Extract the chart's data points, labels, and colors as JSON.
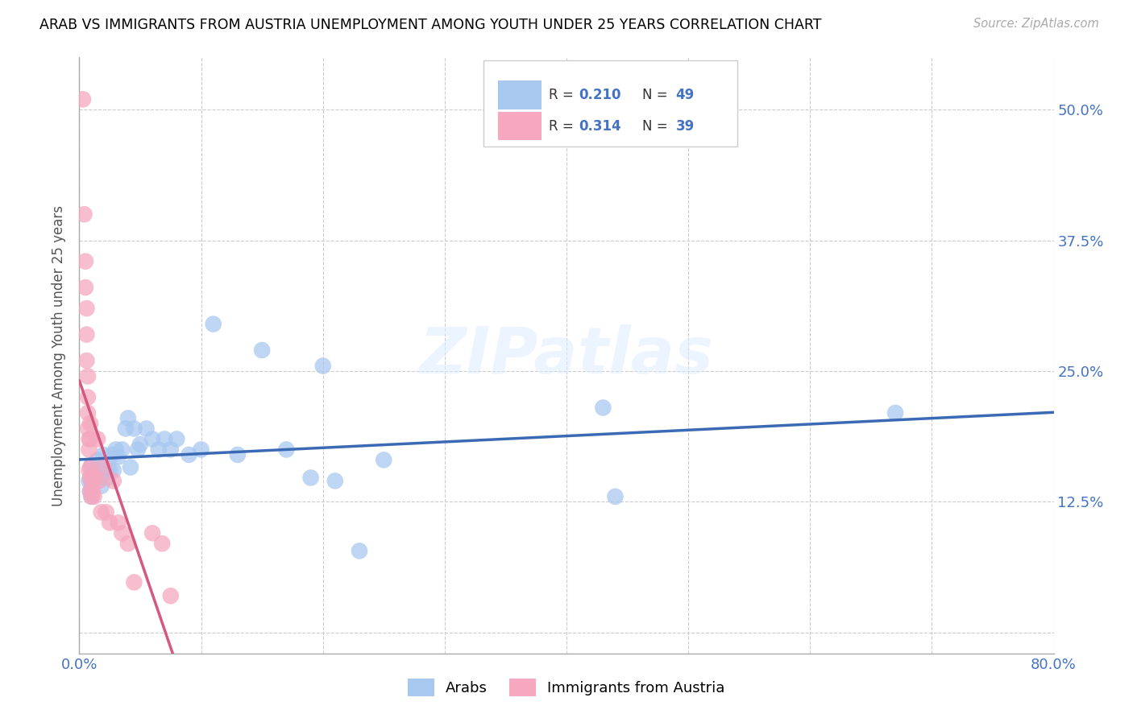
{
  "title": "ARAB VS IMMIGRANTS FROM AUSTRIA UNEMPLOYMENT AMONG YOUTH UNDER 25 YEARS CORRELATION CHART",
  "source": "Source: ZipAtlas.com",
  "ylabel": "Unemployment Among Youth under 25 years",
  "xlim": [
    0.0,
    0.8
  ],
  "ylim": [
    -0.02,
    0.55
  ],
  "x_ticks": [
    0.0,
    0.1,
    0.2,
    0.3,
    0.4,
    0.5,
    0.6,
    0.7,
    0.8
  ],
  "y_ticks": [
    0.0,
    0.125,
    0.25,
    0.375,
    0.5
  ],
  "arab_color": "#a8c8f0",
  "austria_color": "#f5a8c0",
  "arab_line_color": "#3b6ab5",
  "austria_line_color": "#d45880",
  "watermark": "ZIPatlas",
  "arab_R": 0.21,
  "arab_N": 49,
  "austria_R": 0.314,
  "austria_N": 39,
  "arab_x": [
    0.008,
    0.009,
    0.01,
    0.01,
    0.01,
    0.01,
    0.01,
    0.012,
    0.013,
    0.015,
    0.016,
    0.017,
    0.018,
    0.02,
    0.021,
    0.022,
    0.023,
    0.025,
    0.027,
    0.028,
    0.03,
    0.032,
    0.035,
    0.038,
    0.04,
    0.042,
    0.045,
    0.048,
    0.05,
    0.055,
    0.06,
    0.065,
    0.07,
    0.075,
    0.08,
    0.09,
    0.1,
    0.11,
    0.13,
    0.15,
    0.17,
    0.19,
    0.2,
    0.21,
    0.23,
    0.25,
    0.43,
    0.44,
    0.67
  ],
  "arab_y": [
    0.145,
    0.135,
    0.16,
    0.15,
    0.145,
    0.138,
    0.13,
    0.155,
    0.148,
    0.165,
    0.158,
    0.148,
    0.14,
    0.17,
    0.158,
    0.155,
    0.148,
    0.155,
    0.17,
    0.155,
    0.175,
    0.168,
    0.175,
    0.195,
    0.205,
    0.158,
    0.195,
    0.175,
    0.18,
    0.195,
    0.185,
    0.175,
    0.185,
    0.175,
    0.185,
    0.17,
    0.175,
    0.295,
    0.17,
    0.27,
    0.175,
    0.148,
    0.255,
    0.145,
    0.078,
    0.165,
    0.215,
    0.13,
    0.21
  ],
  "austria_x": [
    0.003,
    0.004,
    0.005,
    0.005,
    0.006,
    0.006,
    0.006,
    0.007,
    0.007,
    0.007,
    0.007,
    0.008,
    0.008,
    0.008,
    0.009,
    0.009,
    0.009,
    0.009,
    0.009,
    0.01,
    0.01,
    0.011,
    0.012,
    0.012,
    0.013,
    0.015,
    0.016,
    0.018,
    0.02,
    0.022,
    0.025,
    0.028,
    0.032,
    0.035,
    0.04,
    0.045,
    0.06,
    0.068,
    0.075
  ],
  "austria_y": [
    0.51,
    0.4,
    0.355,
    0.33,
    0.31,
    0.285,
    0.26,
    0.245,
    0.225,
    0.21,
    0.195,
    0.185,
    0.175,
    0.155,
    0.2,
    0.185,
    0.158,
    0.148,
    0.135,
    0.145,
    0.13,
    0.135,
    0.148,
    0.13,
    0.148,
    0.185,
    0.145,
    0.115,
    0.158,
    0.115,
    0.105,
    0.145,
    0.105,
    0.095,
    0.085,
    0.048,
    0.095,
    0.085,
    0.035
  ]
}
